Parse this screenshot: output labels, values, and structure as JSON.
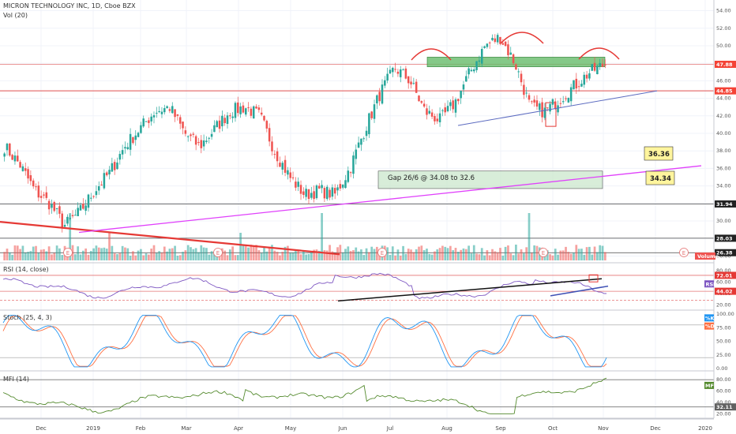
{
  "chart_data": {
    "type": "candlestick",
    "title": "MICRON TECHNOLOGY INC, 1D, Cboe BZX",
    "volume_label": "Vol (20)",
    "x_ticks": [
      "Dec",
      "2019",
      "Feb",
      "Mar",
      "Apr",
      "May",
      "Jun",
      "Jul",
      "Aug",
      "Sep",
      "Oct",
      "Nov",
      "Dec",
      "2020"
    ],
    "price_axis": {
      "ticks": [
        "54.00",
        "52.00",
        "50.00",
        "48.00",
        "46.00",
        "44.00",
        "42.00",
        "40.00",
        "38.00",
        "36.00",
        "34.00",
        "32.00",
        "30.00",
        "28.00",
        "26.00"
      ],
      "ylim": [
        25.5,
        54.5
      ]
    },
    "price_series_keypoints": [
      {
        "x": "Dec 2018",
        "y": 38.5
      },
      {
        "x": "Dec 2018",
        "y": 36.5
      },
      {
        "x": "Dec 2018",
        "y": 33.5
      },
      {
        "x": "Dec 2018",
        "y": 32.0
      },
      {
        "x": "Dec 2018",
        "y": 29.5
      },
      {
        "x": "Jan 2019",
        "y": 31.0
      },
      {
        "x": "Jan 2019",
        "y": 33.5
      },
      {
        "x": "Jan 2019",
        "y": 35.5
      },
      {
        "x": "Feb 2019",
        "y": 38.5
      },
      {
        "x": "Feb 2019",
        "y": 40.5
      },
      {
        "x": "Feb 2019",
        "y": 42.5
      },
      {
        "x": "Mar 2019",
        "y": 43.0
      },
      {
        "x": "Mar 2019",
        "y": 40.0
      },
      {
        "x": "Mar 2019",
        "y": 38.5
      },
      {
        "x": "Apr 2019",
        "y": 40.5
      },
      {
        "x": "Apr 2019",
        "y": 42.5
      },
      {
        "x": "Apr 2019",
        "y": 43.0
      },
      {
        "x": "May 2019",
        "y": 42.0
      },
      {
        "x": "May 2019",
        "y": 38.0
      },
      {
        "x": "May 2019",
        "y": 35.0
      },
      {
        "x": "Jun 2019",
        "y": 33.0
      },
      {
        "x": "Jun 2019",
        "y": 33.5
      },
      {
        "x": "Jun 2019",
        "y": 33.0
      },
      {
        "x": "Jul 2019",
        "y": 36.0
      },
      {
        "x": "Jul 2019",
        "y": 40.5
      },
      {
        "x": "Jul 2019",
        "y": 44.5
      },
      {
        "x": "Jul 2019",
        "y": 47.5
      },
      {
        "x": "Aug 2019",
        "y": 46.0
      },
      {
        "x": "Aug 2019",
        "y": 42.5
      },
      {
        "x": "Aug 2019",
        "y": 41.5
      },
      {
        "x": "Aug 2019",
        "y": 43.5
      },
      {
        "x": "Sep 2019",
        "y": 47.0
      },
      {
        "x": "Sep 2019",
        "y": 50.0
      },
      {
        "x": "Sep 2019",
        "y": 51.0
      },
      {
        "x": "Sep 2019",
        "y": 48.0
      },
      {
        "x": "Oct 2019",
        "y": 43.0
      },
      {
        "x": "Oct 2019",
        "y": 42.5
      },
      {
        "x": "Oct 2019",
        "y": 44.0
      },
      {
        "x": "Oct 2019",
        "y": 45.5
      },
      {
        "x": "Oct 2019",
        "y": 47.0
      },
      {
        "x": "Oct 2019",
        "y": 47.9
      }
    ],
    "price_badges": [
      {
        "value": "47.88",
        "color": "#f44336"
      },
      {
        "value": "44.85",
        "color": "#f44336"
      },
      {
        "value": "31.94",
        "color": "#222222"
      },
      {
        "value": "28.03",
        "color": "#222222"
      },
      {
        "value": "26.38",
        "color": "#222222"
      }
    ],
    "horizontal_levels": [
      47.88,
      44.85,
      31.94,
      28.03,
      26.38
    ],
    "annotations": {
      "gap_text": "Gap 26/6 @ 34.08 to 32.6",
      "callout_upper": "36.36",
      "callout_lower": "34.34",
      "earnings_marker": "E",
      "volume_tag": "Volume"
    },
    "rsi": {
      "title": "RSI (14, close)",
      "badge_label": "RSI",
      "level_badges": [
        "72.01",
        "44.02"
      ],
      "ticks": [
        "80.00",
        "60.00",
        "40.00",
        "20.00"
      ]
    },
    "stoch": {
      "title": "Stoch (25, 4, 3)",
      "ticks": [
        "100.00",
        "75.00",
        "50.00",
        "25.00",
        "0.00"
      ],
      "k_label": "%K",
      "d_label": "%D"
    },
    "mfi": {
      "title": "MFI (14)",
      "badge_label": "MFI",
      "level_badge": "32.11",
      "ticks": [
        "80.00",
        "60.00",
        "40.00",
        "20.00"
      ]
    },
    "colors": {
      "bull": "#26a69a",
      "bear": "#ef5350",
      "resistance": "#e53935",
      "trend_magenta": "#e040fb",
      "trend_red": "#e53935",
      "trend_blue": "#3f51b5",
      "rsi_line": "#7e57c2",
      "stoch_k": "#2196f3",
      "stoch_d": "#ff7043",
      "mfi_line": "#558b2f",
      "zone_green": "#66bb6a",
      "callout": "#fff59d"
    }
  }
}
